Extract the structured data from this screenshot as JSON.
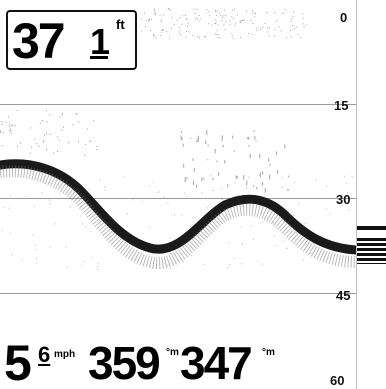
{
  "depth": {
    "whole": "37",
    "tenths": "1",
    "unit": "ft"
  },
  "scale": {
    "labels": [
      "0",
      "15",
      "30",
      "45",
      "60"
    ]
  },
  "readouts": {
    "speed": {
      "whole": "5",
      "tenths": "6",
      "unit": "mph"
    },
    "heading": {
      "value": "359",
      "unit": "°m"
    },
    "track": {
      "value": "347",
      "unit": "°m"
    }
  },
  "colors": {
    "background": "#ffffff",
    "bottom": "#1a1a1a",
    "grid": "#9a9a9a"
  }
}
